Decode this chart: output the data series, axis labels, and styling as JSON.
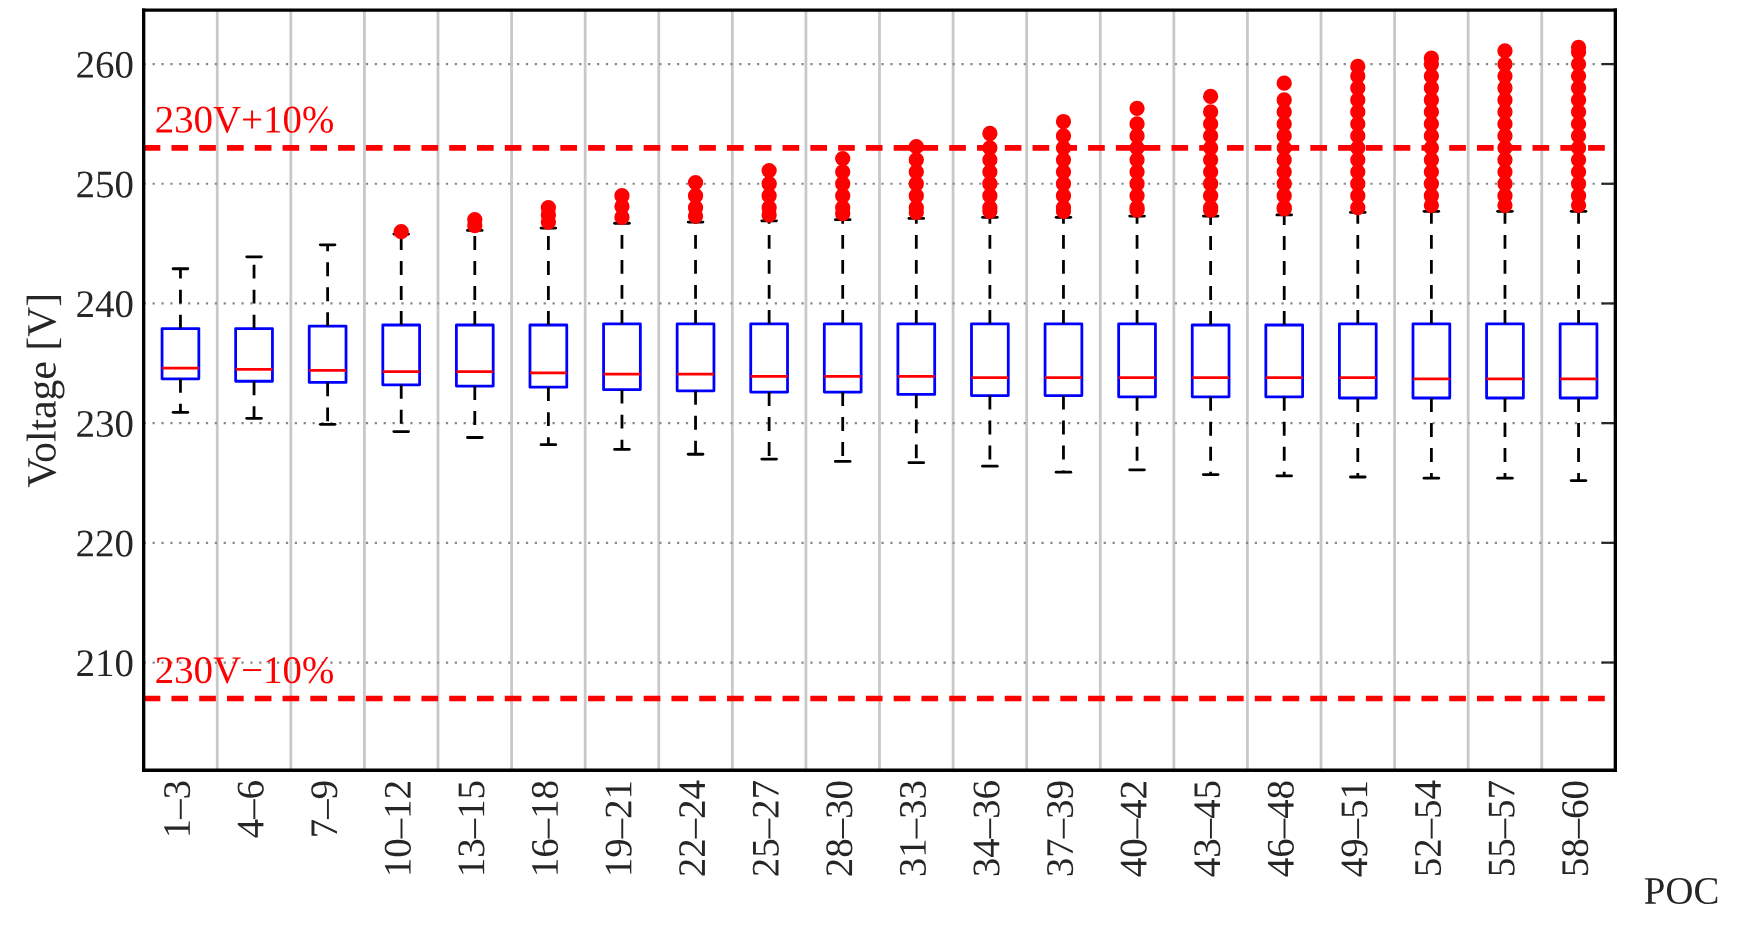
{
  "chart_data": {
    "type": "box",
    "xlabel": "POC",
    "ylabel": "Voltage [V]",
    "categories": [
      "1–3",
      "4–6",
      "7–9",
      "10–12",
      "13–15",
      "16–18",
      "19–21",
      "22–24",
      "25–27",
      "28–30",
      "31–33",
      "34–36",
      "37–39",
      "40–42",
      "43–45",
      "46–48",
      "49–51",
      "52–54",
      "55–57",
      "58–60"
    ],
    "ylim": [
      201,
      264.5
    ],
    "yticks": [
      210,
      220,
      230,
      240,
      250,
      260
    ],
    "grid": true,
    "ref_lines": [
      {
        "axis": "y",
        "value": 253,
        "label": "230V+10%",
        "color": "#ff0000",
        "line_style": "dashed"
      },
      {
        "axis": "y",
        "value": 207,
        "label": "230V−10%",
        "color": "#ff0000",
        "line_style": "dashed"
      }
    ],
    "boxes": [
      {
        "low": 230.9,
        "q1": 233.7,
        "median": 234.6,
        "q3": 237.9,
        "high": 242.9
      },
      {
        "low": 230.4,
        "q1": 233.5,
        "median": 234.5,
        "q3": 237.9,
        "high": 243.9
      },
      {
        "low": 229.9,
        "q1": 233.4,
        "median": 234.4,
        "q3": 238.1,
        "high": 244.9
      },
      {
        "low": 229.3,
        "q1": 233.2,
        "median": 234.3,
        "q3": 238.2,
        "high": 245.8,
        "outliers": [
          246.0
        ]
      },
      {
        "low": 228.8,
        "q1": 233.1,
        "median": 234.3,
        "q3": 238.2,
        "high": 246.1,
        "outliers": [
          246.5,
          247.0
        ]
      },
      {
        "low": 228.2,
        "q1": 233.0,
        "median": 234.2,
        "q3": 238.2,
        "high": 246.3,
        "outliers": [
          246.8,
          247.4,
          248.0
        ]
      },
      {
        "low": 227.8,
        "q1": 232.8,
        "median": 234.1,
        "q3": 238.3,
        "high": 246.7,
        "outliers": [
          247.2,
          248.1,
          249.0
        ]
      },
      {
        "low": 227.4,
        "q1": 232.7,
        "median": 234.1,
        "q3": 238.3,
        "high": 246.8,
        "outliers": [
          247.3,
          248,
          249,
          250.1
        ]
      },
      {
        "low": 227.0,
        "q1": 232.6,
        "median": 233.9,
        "q3": 238.3,
        "high": 246.9,
        "outliers": [
          247.4,
          248,
          249,
          250,
          251.1
        ]
      },
      {
        "low": 226.8,
        "q1": 232.6,
        "median": 233.9,
        "q3": 238.3,
        "high": 247.0,
        "outliers": [
          247.5,
          248,
          249,
          250,
          251,
          252.1
        ]
      },
      {
        "low": 226.7,
        "q1": 232.4,
        "median": 233.9,
        "q3": 238.3,
        "high": 247.1,
        "outliers": [
          247.6,
          248,
          249,
          250,
          251,
          252,
          253.1
        ]
      },
      {
        "low": 226.4,
        "q1": 232.3,
        "median": 233.8,
        "q3": 238.3,
        "high": 247.2,
        "outliers": [
          247.7,
          248,
          249,
          250,
          251,
          252,
          253,
          254.2
        ]
      },
      {
        "low": 225.9,
        "q1": 232.3,
        "median": 233.8,
        "q3": 238.3,
        "high": 247.2,
        "outliers": [
          247.7,
          248,
          249,
          250,
          251,
          252,
          253,
          254,
          255.2
        ]
      },
      {
        "low": 226.1,
        "q1": 232.2,
        "median": 233.8,
        "q3": 238.3,
        "high": 247.3,
        "outliers": [
          247.8,
          248,
          249,
          250,
          251,
          252,
          253,
          254,
          255,
          256.3
        ]
      },
      {
        "low": 225.7,
        "q1": 232.2,
        "median": 233.8,
        "q3": 238.2,
        "high": 247.3,
        "outliers": [
          247.8,
          248,
          249,
          250,
          251,
          252,
          253,
          254,
          255,
          256,
          257.3
        ]
      },
      {
        "low": 225.6,
        "q1": 232.2,
        "median": 233.8,
        "q3": 238.2,
        "high": 247.4,
        "outliers": [
          247.9,
          248,
          249,
          250,
          251,
          252,
          253,
          254,
          255,
          256,
          257,
          258.4
        ]
      },
      {
        "low": 225.5,
        "q1": 232.1,
        "median": 233.8,
        "q3": 238.3,
        "high": 247.6,
        "outliers": [
          248,
          249,
          250,
          251,
          252,
          253,
          254,
          255,
          256,
          257,
          258,
          259,
          259.8
        ]
      },
      {
        "low": 225.4,
        "q1": 232.1,
        "median": 233.7,
        "q3": 238.3,
        "high": 247.7,
        "outliers": [
          248.2,
          249,
          250,
          251,
          252,
          253,
          254,
          255,
          256,
          257,
          258,
          259,
          260,
          260.5
        ]
      },
      {
        "low": 225.4,
        "q1": 232.1,
        "median": 233.7,
        "q3": 238.3,
        "high": 247.7,
        "outliers": [
          248.2,
          249,
          250,
          251,
          252,
          253,
          254,
          255,
          256,
          257,
          258,
          259,
          260,
          261.1
        ]
      },
      {
        "low": 225.2,
        "q1": 232.1,
        "median": 233.7,
        "q3": 238.3,
        "high": 247.7,
        "outliers": [
          248.2,
          249,
          250,
          251,
          252,
          253,
          254,
          255,
          256,
          257,
          258,
          259,
          260,
          261,
          261.4
        ]
      }
    ]
  }
}
